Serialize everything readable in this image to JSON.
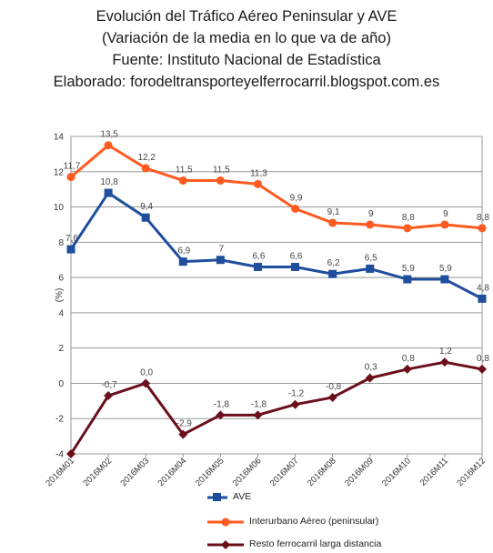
{
  "header": {
    "title": "Evolución del Tráfico Aéreo Peninsular y AVE",
    "subtitle": "(Variación de la media en lo que va de año)",
    "source": "Fuente: Instituto Nacional de Estadística",
    "author": "Elaborado: forodeltransporteyelferrocarril.blogspot.com.es"
  },
  "chart_data": {
    "type": "line",
    "title": "Evolución del Tráfico Aéreo Peninsular y AVE",
    "xlabel": "",
    "ylabel": "(%)",
    "ylim": [
      -4,
      14
    ],
    "yticks": [
      -4,
      -2,
      0,
      2,
      4,
      6,
      8,
      10,
      12,
      14
    ],
    "grid": true,
    "legend_position": "bottom",
    "categories": [
      "2016M01",
      "2016M02",
      "2016M03",
      "2016M04",
      "2016M05",
      "2016M06",
      "2016M07",
      "2016M08",
      "2016M09",
      "2016M10",
      "2016M11",
      "2016M12"
    ],
    "series": [
      {
        "name": "AVE",
        "color": "#1f4e9c",
        "marker": "square",
        "values": [
          7.6,
          10.8,
          9.4,
          6.9,
          7.0,
          6.6,
          6.6,
          6.2,
          6.5,
          5.9,
          5.9,
          4.8
        ],
        "labels": [
          "7,6",
          "10,8",
          "9,4",
          "6,9",
          "7",
          "6,6",
          "6,6",
          "6,2",
          "6,5",
          "5,9",
          "5,9",
          "4,8"
        ]
      },
      {
        "name": "Interurbano Aéreo (peninsular)",
        "color": "#ff5a1f",
        "marker": "circle",
        "values": [
          11.7,
          13.5,
          12.2,
          11.5,
          11.5,
          11.3,
          9.9,
          9.1,
          9.0,
          8.8,
          9.0,
          8.8
        ],
        "labels": [
          "11,7",
          "13,5",
          "12,2",
          "11,5",
          "11,5",
          "11,3",
          "9,9",
          "9,1",
          "9",
          "8,8",
          "9",
          "8,8"
        ]
      },
      {
        "name": "Resto ferrocarril larga distancia",
        "color": "#6b0f1a",
        "marker": "diamond",
        "values": [
          -4.0,
          -0.7,
          0.0,
          -2.9,
          -1.8,
          -1.8,
          -1.2,
          -0.8,
          0.3,
          0.8,
          1.2,
          0.8
        ],
        "labels": [
          "",
          "-0,7",
          "0,0",
          "-2,9",
          "-1,8",
          "-1,8",
          "-1,2",
          "-0,8",
          "0,3",
          "0,8",
          "1,2",
          "0,8"
        ]
      }
    ]
  }
}
